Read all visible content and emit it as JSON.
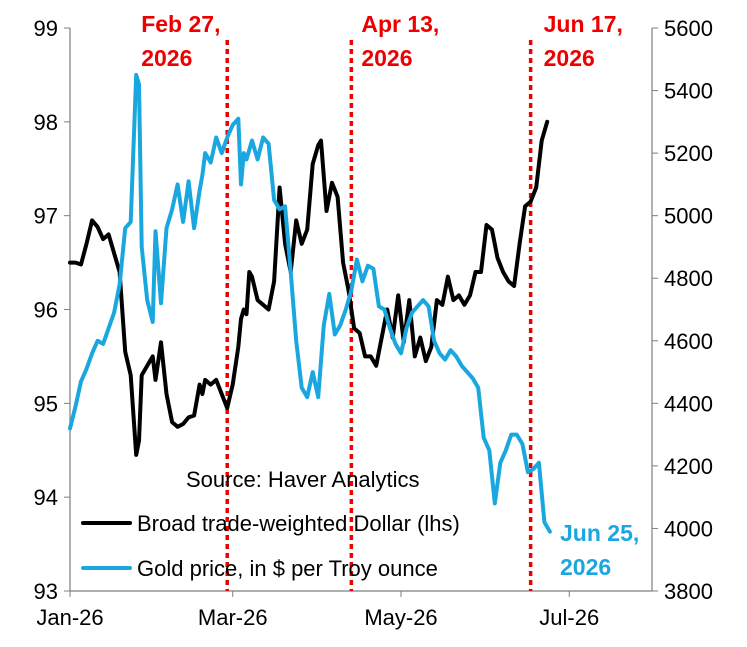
{
  "chart_data": {
    "type": "line",
    "title": "",
    "source": "Source: Haver Analytics",
    "x_axis": {
      "start": "2026-01-01",
      "end": "2026-07-31",
      "tick_labels": [
        "Jan-26",
        "Mar-26",
        "May-26",
        "Jul-26"
      ],
      "tick_dates": [
        "2026-01-01",
        "2026-03-01",
        "2026-05-01",
        "2026-07-01"
      ]
    },
    "y_left": {
      "range": [
        93,
        99
      ],
      "ticks": [
        "93",
        "94",
        "95",
        "96",
        "97",
        "98",
        "99"
      ]
    },
    "y_right": {
      "range": [
        3800,
        5600
      ],
      "ticks": [
        "3800",
        "4000",
        "4200",
        "4400",
        "4600",
        "4800",
        "5000",
        "5200",
        "5400",
        "5600"
      ]
    },
    "grid": false,
    "legend_position": "bottom-left",
    "series": [
      {
        "name": "Broad trade-weighted Dollar (lhs)",
        "axis": "left",
        "color": "#000000",
        "points": [
          [
            "2026-01-01",
            96.5
          ],
          [
            "2026-01-03",
            96.5
          ],
          [
            "2026-01-05",
            96.48
          ],
          [
            "2026-01-07",
            96.7
          ],
          [
            "2026-01-09",
            96.95
          ],
          [
            "2026-01-11",
            96.88
          ],
          [
            "2026-01-13",
            96.75
          ],
          [
            "2026-01-15",
            96.8
          ],
          [
            "2026-01-17",
            96.6
          ],
          [
            "2026-01-19",
            96.4
          ],
          [
            "2026-01-21",
            95.55
          ],
          [
            "2026-01-23",
            95.3
          ],
          [
            "2026-01-25",
            94.45
          ],
          [
            "2026-01-26",
            94.6
          ],
          [
            "2026-01-27",
            95.3
          ],
          [
            "2026-01-29",
            95.4
          ],
          [
            "2026-01-31",
            95.5
          ],
          [
            "2026-02-01",
            95.25
          ],
          [
            "2026-02-03",
            95.65
          ],
          [
            "2026-02-05",
            95.1
          ],
          [
            "2026-02-07",
            94.8
          ],
          [
            "2026-02-09",
            94.75
          ],
          [
            "2026-02-11",
            94.78
          ],
          [
            "2026-02-13",
            94.85
          ],
          [
            "2026-02-15",
            94.87
          ],
          [
            "2026-02-17",
            95.2
          ],
          [
            "2026-02-18",
            95.1
          ],
          [
            "2026-02-19",
            95.25
          ],
          [
            "2026-02-21",
            95.2
          ],
          [
            "2026-02-23",
            95.25
          ],
          [
            "2026-02-25",
            95.1
          ],
          [
            "2026-02-27",
            94.95
          ],
          [
            "2026-03-01",
            95.2
          ],
          [
            "2026-03-03",
            95.6
          ],
          [
            "2026-03-04",
            95.9
          ],
          [
            "2026-03-05",
            96.0
          ],
          [
            "2026-03-06",
            95.95
          ],
          [
            "2026-03-07",
            96.4
          ],
          [
            "2026-03-08",
            96.35
          ],
          [
            "2026-03-10",
            96.1
          ],
          [
            "2026-03-12",
            96.05
          ],
          [
            "2026-03-14",
            96.0
          ],
          [
            "2026-03-16",
            96.3
          ],
          [
            "2026-03-18",
            97.3
          ],
          [
            "2026-03-20",
            96.7
          ],
          [
            "2026-03-22",
            96.4
          ],
          [
            "2026-03-24",
            96.95
          ],
          [
            "2026-03-26",
            96.7
          ],
          [
            "2026-03-28",
            96.85
          ],
          [
            "2026-03-30",
            97.55
          ],
          [
            "2026-04-01",
            97.75
          ],
          [
            "2026-04-02",
            97.8
          ],
          [
            "2026-04-04",
            97.05
          ],
          [
            "2026-04-06",
            97.35
          ],
          [
            "2026-04-08",
            97.2
          ],
          [
            "2026-04-10",
            96.5
          ],
          [
            "2026-04-12",
            96.2
          ],
          [
            "2026-04-14",
            95.8
          ],
          [
            "2026-04-16",
            95.75
          ],
          [
            "2026-04-18",
            95.5
          ],
          [
            "2026-04-20",
            95.5
          ],
          [
            "2026-04-22",
            95.4
          ],
          [
            "2026-04-24",
            95.7
          ],
          [
            "2026-04-26",
            96.0
          ],
          [
            "2026-04-28",
            95.7
          ],
          [
            "2026-04-30",
            96.15
          ],
          [
            "2026-05-02",
            95.65
          ],
          [
            "2026-05-04",
            96.1
          ],
          [
            "2026-05-06",
            95.5
          ],
          [
            "2026-05-08",
            95.7
          ],
          [
            "2026-05-10",
            95.45
          ],
          [
            "2026-05-12",
            95.6
          ],
          [
            "2026-05-14",
            96.1
          ],
          [
            "2026-05-16",
            96.05
          ],
          [
            "2026-05-18",
            96.35
          ],
          [
            "2026-05-20",
            96.1
          ],
          [
            "2026-05-22",
            96.15
          ],
          [
            "2026-05-24",
            96.05
          ],
          [
            "2026-05-26",
            96.15
          ],
          [
            "2026-05-28",
            96.4
          ],
          [
            "2026-05-30",
            96.4
          ],
          [
            "2026-06-01",
            96.9
          ],
          [
            "2026-06-03",
            96.85
          ],
          [
            "2026-06-05",
            96.55
          ],
          [
            "2026-06-07",
            96.4
          ],
          [
            "2026-06-09",
            96.3
          ],
          [
            "2026-06-11",
            96.25
          ],
          [
            "2026-06-13",
            96.7
          ],
          [
            "2026-06-15",
            97.1
          ],
          [
            "2026-06-17",
            97.15
          ],
          [
            "2026-06-19",
            97.3
          ],
          [
            "2026-06-21",
            97.8
          ],
          [
            "2026-06-23",
            98.0
          ]
        ]
      },
      {
        "name": "Gold price, in $ per Troy ounce",
        "axis": "right",
        "color": "#1aa7e0",
        "points": [
          [
            "2026-01-01",
            4320
          ],
          [
            "2026-01-03",
            4390
          ],
          [
            "2026-01-05",
            4470
          ],
          [
            "2026-01-07",
            4510
          ],
          [
            "2026-01-09",
            4560
          ],
          [
            "2026-01-11",
            4600
          ],
          [
            "2026-01-13",
            4590
          ],
          [
            "2026-01-15",
            4640
          ],
          [
            "2026-01-17",
            4690
          ],
          [
            "2026-01-19",
            4780
          ],
          [
            "2026-01-21",
            4960
          ],
          [
            "2026-01-23",
            4980
          ],
          [
            "2026-01-25",
            5450
          ],
          [
            "2026-01-26",
            5420
          ],
          [
            "2026-01-27",
            4900
          ],
          [
            "2026-01-29",
            4730
          ],
          [
            "2026-01-31",
            4660
          ],
          [
            "2026-02-01",
            4950
          ],
          [
            "2026-02-03",
            4720
          ],
          [
            "2026-02-05",
            4960
          ],
          [
            "2026-02-07",
            5020
          ],
          [
            "2026-02-09",
            5100
          ],
          [
            "2026-02-11",
            4980
          ],
          [
            "2026-02-13",
            5110
          ],
          [
            "2026-02-15",
            4960
          ],
          [
            "2026-02-17",
            5080
          ],
          [
            "2026-02-18",
            5130
          ],
          [
            "2026-02-19",
            5200
          ],
          [
            "2026-02-21",
            5170
          ],
          [
            "2026-02-23",
            5250
          ],
          [
            "2026-02-25",
            5200
          ],
          [
            "2026-02-27",
            5250
          ],
          [
            "2026-03-01",
            5290
          ],
          [
            "2026-03-03",
            5310
          ],
          [
            "2026-03-04",
            5100
          ],
          [
            "2026-03-05",
            5200
          ],
          [
            "2026-03-06",
            5180
          ],
          [
            "2026-03-08",
            5240
          ],
          [
            "2026-03-10",
            5180
          ],
          [
            "2026-03-12",
            5250
          ],
          [
            "2026-03-14",
            5230
          ],
          [
            "2026-03-16",
            5050
          ],
          [
            "2026-03-18",
            5020
          ],
          [
            "2026-03-20",
            5030
          ],
          [
            "2026-03-22",
            4820
          ],
          [
            "2026-03-24",
            4600
          ],
          [
            "2026-03-26",
            4450
          ],
          [
            "2026-03-28",
            4420
          ],
          [
            "2026-03-30",
            4500
          ],
          [
            "2026-04-01",
            4420
          ],
          [
            "2026-04-03",
            4650
          ],
          [
            "2026-04-05",
            4750
          ],
          [
            "2026-04-07",
            4620
          ],
          [
            "2026-04-09",
            4650
          ],
          [
            "2026-04-11",
            4700
          ],
          [
            "2026-04-13",
            4760
          ],
          [
            "2026-04-15",
            4860
          ],
          [
            "2026-04-17",
            4790
          ],
          [
            "2026-04-19",
            4840
          ],
          [
            "2026-04-21",
            4830
          ],
          [
            "2026-04-23",
            4710
          ],
          [
            "2026-04-25",
            4700
          ],
          [
            "2026-04-27",
            4640
          ],
          [
            "2026-04-29",
            4590
          ],
          [
            "2026-05-01",
            4560
          ],
          [
            "2026-05-03",
            4640
          ],
          [
            "2026-05-05",
            4690
          ],
          [
            "2026-05-07",
            4710
          ],
          [
            "2026-05-09",
            4730
          ],
          [
            "2026-05-11",
            4710
          ],
          [
            "2026-05-13",
            4600
          ],
          [
            "2026-05-15",
            4560
          ],
          [
            "2026-05-17",
            4540
          ],
          [
            "2026-05-19",
            4570
          ],
          [
            "2026-05-21",
            4550
          ],
          [
            "2026-05-23",
            4520
          ],
          [
            "2026-05-25",
            4500
          ],
          [
            "2026-05-27",
            4480
          ],
          [
            "2026-05-29",
            4450
          ],
          [
            "2026-05-31",
            4290
          ],
          [
            "2026-06-02",
            4250
          ],
          [
            "2026-06-04",
            4080
          ],
          [
            "2026-06-06",
            4210
          ],
          [
            "2026-06-08",
            4250
          ],
          [
            "2026-06-10",
            4300
          ],
          [
            "2026-06-12",
            4300
          ],
          [
            "2026-06-14",
            4270
          ],
          [
            "2026-06-16",
            4180
          ],
          [
            "2026-06-18",
            4190
          ],
          [
            "2026-06-20",
            4210
          ],
          [
            "2026-06-22",
            4020
          ],
          [
            "2026-06-24",
            3990
          ]
        ]
      }
    ],
    "vlines": [
      {
        "date": "2026-02-27",
        "label_line1": "Feb 27,",
        "label_line2": "2026",
        "color": "#ee0000"
      },
      {
        "date": "2026-04-13",
        "label_line1": "Apr 13,",
        "label_line2": "2026",
        "color": "#ee0000"
      },
      {
        "date": "2026-06-17",
        "label_line1": "Jun 17,",
        "label_line2": "2026",
        "color": "#ee0000"
      }
    ],
    "end_annotation": {
      "line1": "Jun 25,",
      "line2": "2026",
      "color": "#1aa7e0"
    }
  }
}
